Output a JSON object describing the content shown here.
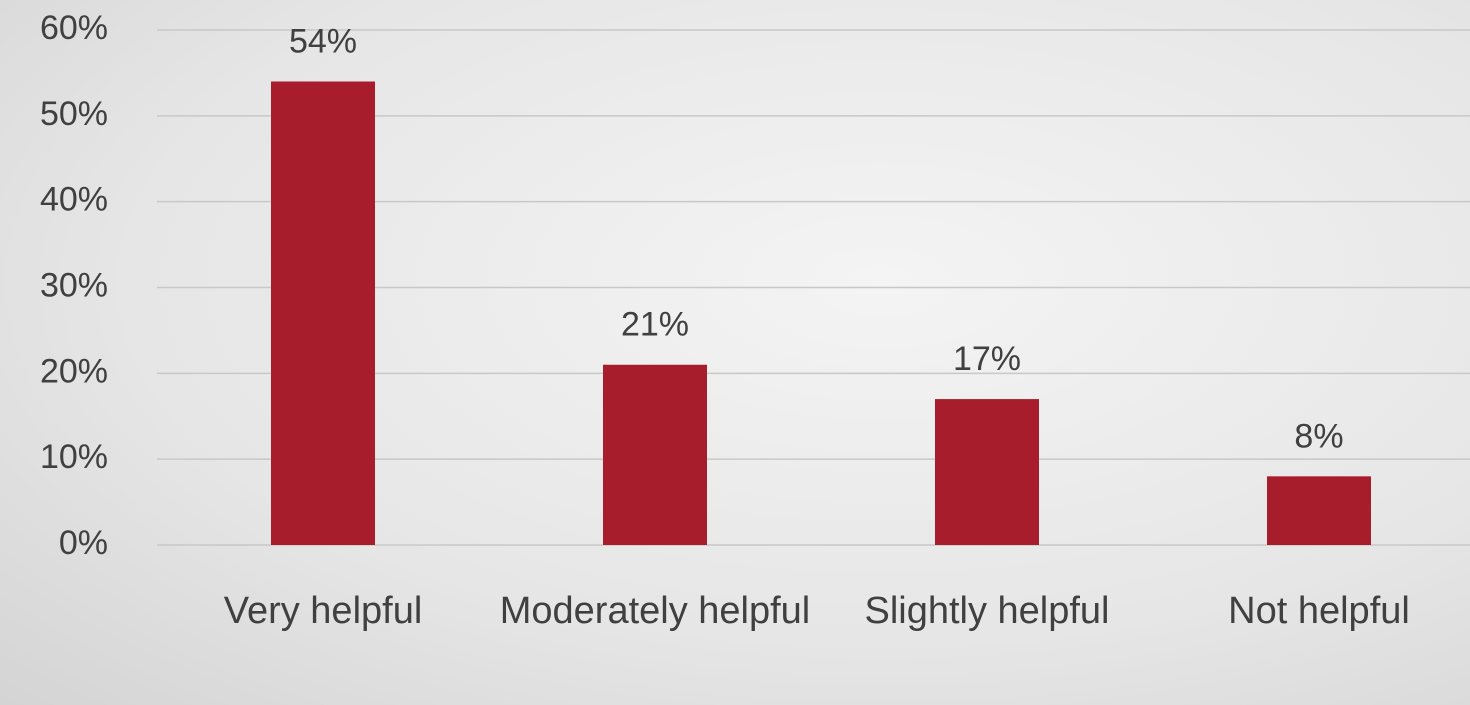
{
  "chart_data": {
    "type": "bar",
    "categories": [
      "Very helpful",
      "Moderately helpful",
      "Slightly helpful",
      "Not helpful"
    ],
    "values": [
      54,
      21,
      17,
      8
    ],
    "value_labels": [
      "54%",
      "21%",
      "17%",
      "8%"
    ],
    "color": "#a81d2c",
    "ylim": [
      0,
      60
    ],
    "yticks": [
      {
        "value": 0,
        "label": "0%"
      },
      {
        "value": 10,
        "label": "10%"
      },
      {
        "value": 20,
        "label": "20%"
      },
      {
        "value": 30,
        "label": "30%"
      },
      {
        "value": 40,
        "label": "40%"
      },
      {
        "value": 50,
        "label": "50%"
      },
      {
        "value": 60,
        "label": "60%"
      }
    ],
    "grid": true
  }
}
